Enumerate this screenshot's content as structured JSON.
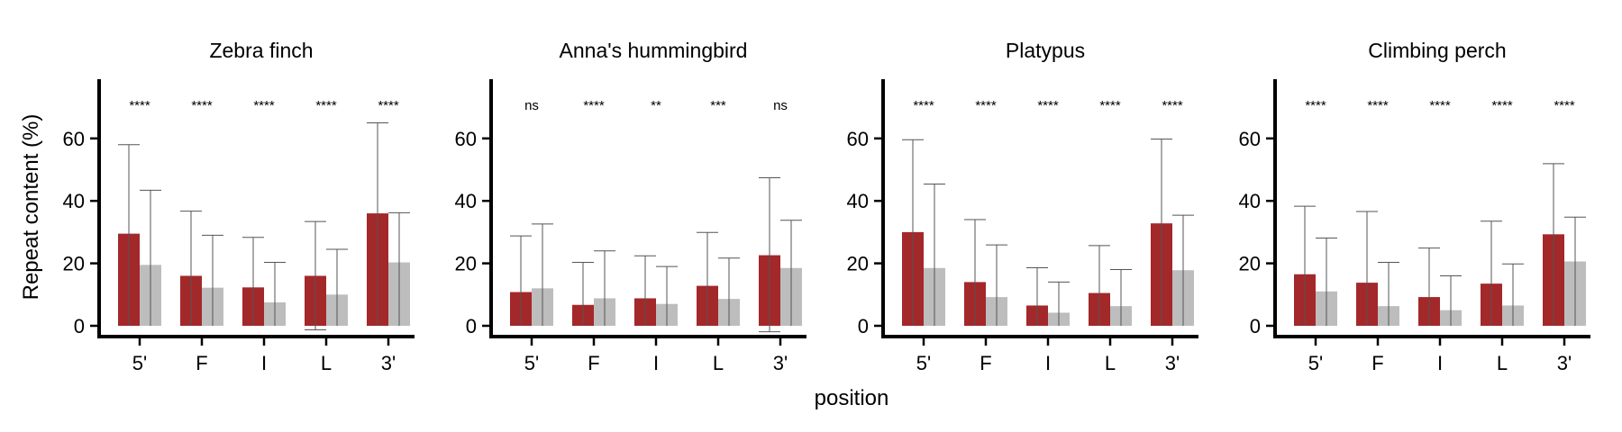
{
  "figure": {
    "xlabel": "position",
    "ylabel": "Repeat content (%)"
  },
  "colors": {
    "series_a": "#a3282a",
    "series_b": "#bdbdbd",
    "axis": "#000000",
    "error_bar": "#555555"
  },
  "chart_data": [
    {
      "type": "bar",
      "title": "Zebra finch",
      "categories": [
        "5'",
        "F",
        "I",
        "L",
        "3'"
      ],
      "yticks": [
        0,
        20,
        40,
        60
      ],
      "ylim": [
        0,
        78
      ],
      "series": [
        {
          "values": [
            29.5,
            16,
            12.3,
            16,
            36
          ],
          "error_upper": [
            58,
            36.7,
            28.3,
            33.4,
            65
          ],
          "error_lower": [
            0,
            0,
            0,
            -1.3,
            0
          ]
        },
        {
          "values": [
            19.5,
            12.2,
            7.5,
            10,
            20.3
          ],
          "error_upper": [
            43.4,
            29,
            20.3,
            24.5,
            36.2
          ],
          "error_lower": [
            0,
            0,
            0,
            0,
            0
          ]
        }
      ],
      "significance": [
        "****",
        "****",
        "****",
        "****",
        "****"
      ]
    },
    {
      "type": "bar",
      "title": "Anna's hummingbird",
      "categories": [
        "5'",
        "F",
        "I",
        "L",
        "3'"
      ],
      "yticks": [
        0,
        20,
        40,
        60
      ],
      "ylim": [
        0,
        78
      ],
      "series": [
        {
          "values": [
            10.8,
            6.7,
            8.8,
            12.8,
            22.6
          ],
          "error_upper": [
            28.8,
            20.3,
            22.4,
            29.9,
            47.4
          ],
          "error_lower": [
            0,
            0,
            0,
            0,
            -1.9
          ]
        },
        {
          "values": [
            12,
            8.8,
            7,
            8.6,
            18.5
          ],
          "error_upper": [
            32.6,
            24,
            19,
            21.7,
            33.8
          ],
          "error_lower": [
            0,
            0,
            0,
            0,
            0
          ]
        }
      ],
      "significance": [
        "ns",
        "****",
        "**",
        "***",
        "ns"
      ]
    },
    {
      "type": "bar",
      "title": "Platypus",
      "categories": [
        "5'",
        "F",
        "I",
        "L",
        "3'"
      ],
      "yticks": [
        0,
        20,
        40,
        60
      ],
      "ylim": [
        0,
        78
      ],
      "series": [
        {
          "values": [
            30,
            14,
            6.5,
            10.5,
            32.8
          ],
          "error_upper": [
            59.6,
            34,
            18.6,
            25.7,
            59.8
          ],
          "error_lower": [
            0,
            0,
            0,
            0,
            0
          ]
        },
        {
          "values": [
            18.5,
            9.2,
            4.2,
            6.3,
            17.8
          ],
          "error_upper": [
            45.4,
            25.9,
            14,
            18,
            35.4
          ],
          "error_lower": [
            0,
            0,
            0,
            0,
            0
          ]
        }
      ],
      "significance": [
        "****",
        "****",
        "****",
        "****",
        "****"
      ]
    },
    {
      "type": "bar",
      "title": "Climbing perch",
      "categories": [
        "5'",
        "F",
        "I",
        "L",
        "3'"
      ],
      "yticks": [
        0,
        20,
        40,
        60
      ],
      "ylim": [
        0,
        78
      ],
      "series": [
        {
          "values": [
            16.5,
            13.8,
            9.2,
            13.5,
            29.3
          ],
          "error_upper": [
            38.3,
            36.6,
            24.9,
            33.5,
            51.9
          ],
          "error_lower": [
            0,
            0,
            0,
            0,
            0
          ]
        },
        {
          "values": [
            11,
            6.3,
            5,
            6.5,
            20.6
          ],
          "error_upper": [
            28.1,
            20.3,
            16,
            19.8,
            34.8
          ],
          "error_lower": [
            0,
            0,
            0,
            0,
            0
          ]
        }
      ],
      "significance": [
        "****",
        "****",
        "****",
        "****",
        "****"
      ]
    }
  ]
}
